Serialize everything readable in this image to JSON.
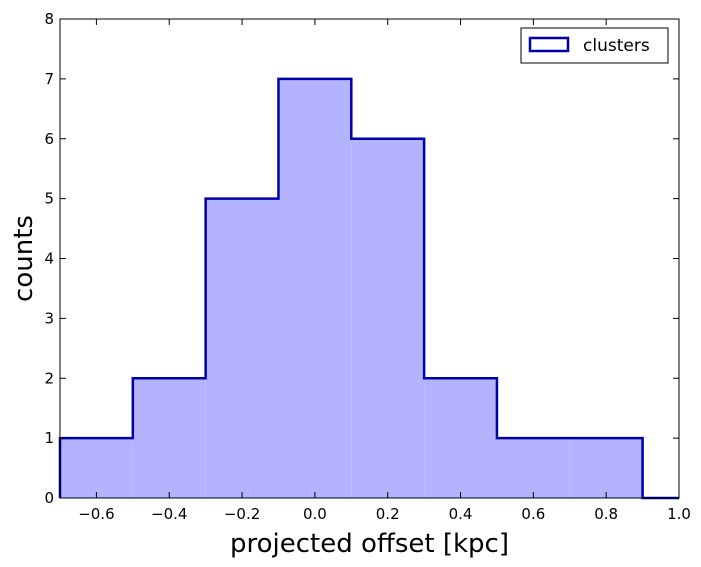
{
  "chart_data": {
    "type": "histogram",
    "xlabel": "projected offset [kpc]",
    "ylabel": "counts",
    "xlim": [
      -0.7,
      1.0
    ],
    "ylim": [
      0,
      8
    ],
    "bin_edges": [
      -0.7,
      -0.5,
      -0.3,
      -0.1,
      0.1,
      0.3,
      0.5,
      0.7,
      0.9,
      1.0
    ],
    "counts": [
      1,
      2,
      5,
      7,
      6,
      2,
      1,
      1,
      0
    ],
    "x_ticks": [
      -0.6,
      -0.4,
      -0.2,
      0.0,
      0.2,
      0.4,
      0.6,
      0.8,
      1.0
    ],
    "x_tick_labels": [
      "−0.6",
      "−0.4",
      "−0.2",
      "0.0",
      "0.2",
      "0.4",
      "0.6",
      "0.8",
      "1.0"
    ],
    "y_ticks": [
      0,
      1,
      2,
      3,
      4,
      5,
      6,
      7,
      8
    ],
    "y_tick_labels": [
      "0",
      "1",
      "2",
      "3",
      "4",
      "5",
      "6",
      "7",
      "8"
    ],
    "grid": false,
    "legend": {
      "position": "top-right",
      "entries": [
        "clusters"
      ]
    },
    "colors": {
      "fill": "#b3b3ff",
      "edge": "#0000aa"
    }
  }
}
